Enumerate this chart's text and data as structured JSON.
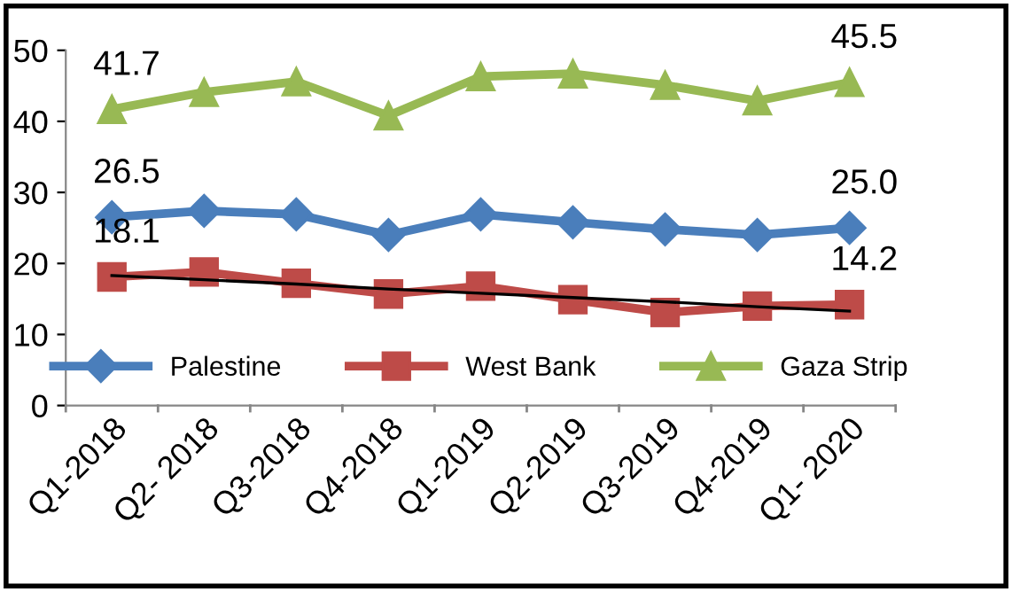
{
  "chart_data": {
    "type": "line",
    "categories": [
      "Q1-2018",
      "Q2- 2018",
      "Q3-2018",
      "Q4-2018",
      "Q1-2019",
      "Q2-2019",
      "Q3-2019",
      "Q4-2019",
      "Q1- 2020"
    ],
    "series": [
      {
        "name": "Palestine",
        "color": "#4a7ebb",
        "marker": "diamond",
        "values": [
          26.5,
          27.4,
          26.9,
          24.0,
          26.9,
          25.8,
          24.8,
          24.0,
          25.0
        ],
        "value_labels": [
          "26.5",
          null,
          null,
          null,
          null,
          null,
          null,
          null,
          "25.0"
        ]
      },
      {
        "name": "West Bank",
        "color": "#be4b48",
        "marker": "square",
        "values": [
          18.1,
          18.8,
          17.2,
          15.7,
          16.8,
          14.9,
          13.1,
          14.0,
          14.2
        ],
        "value_labels": [
          "18.1",
          null,
          null,
          null,
          null,
          null,
          null,
          null,
          "14.2"
        ]
      },
      {
        "name": "Gaza Strip",
        "color": "#98b954",
        "marker": "triangle",
        "values": [
          41.7,
          44.1,
          45.6,
          40.8,
          46.3,
          46.7,
          45.1,
          42.9,
          45.5
        ],
        "value_labels": [
          "41.7",
          null,
          null,
          null,
          null,
          null,
          null,
          null,
          "45.5"
        ]
      },
      {
        "color": "#000000",
        "marker": "none",
        "values": [
          18.3,
          17.7,
          17.1,
          16.4,
          15.8,
          15.2,
          14.6,
          13.9,
          13.3
        ]
      }
    ],
    "ylim": [
      0,
      50
    ],
    "yticks": [
      0,
      10,
      20,
      30,
      40,
      50
    ],
    "grid": false,
    "legend": "bottom"
  }
}
